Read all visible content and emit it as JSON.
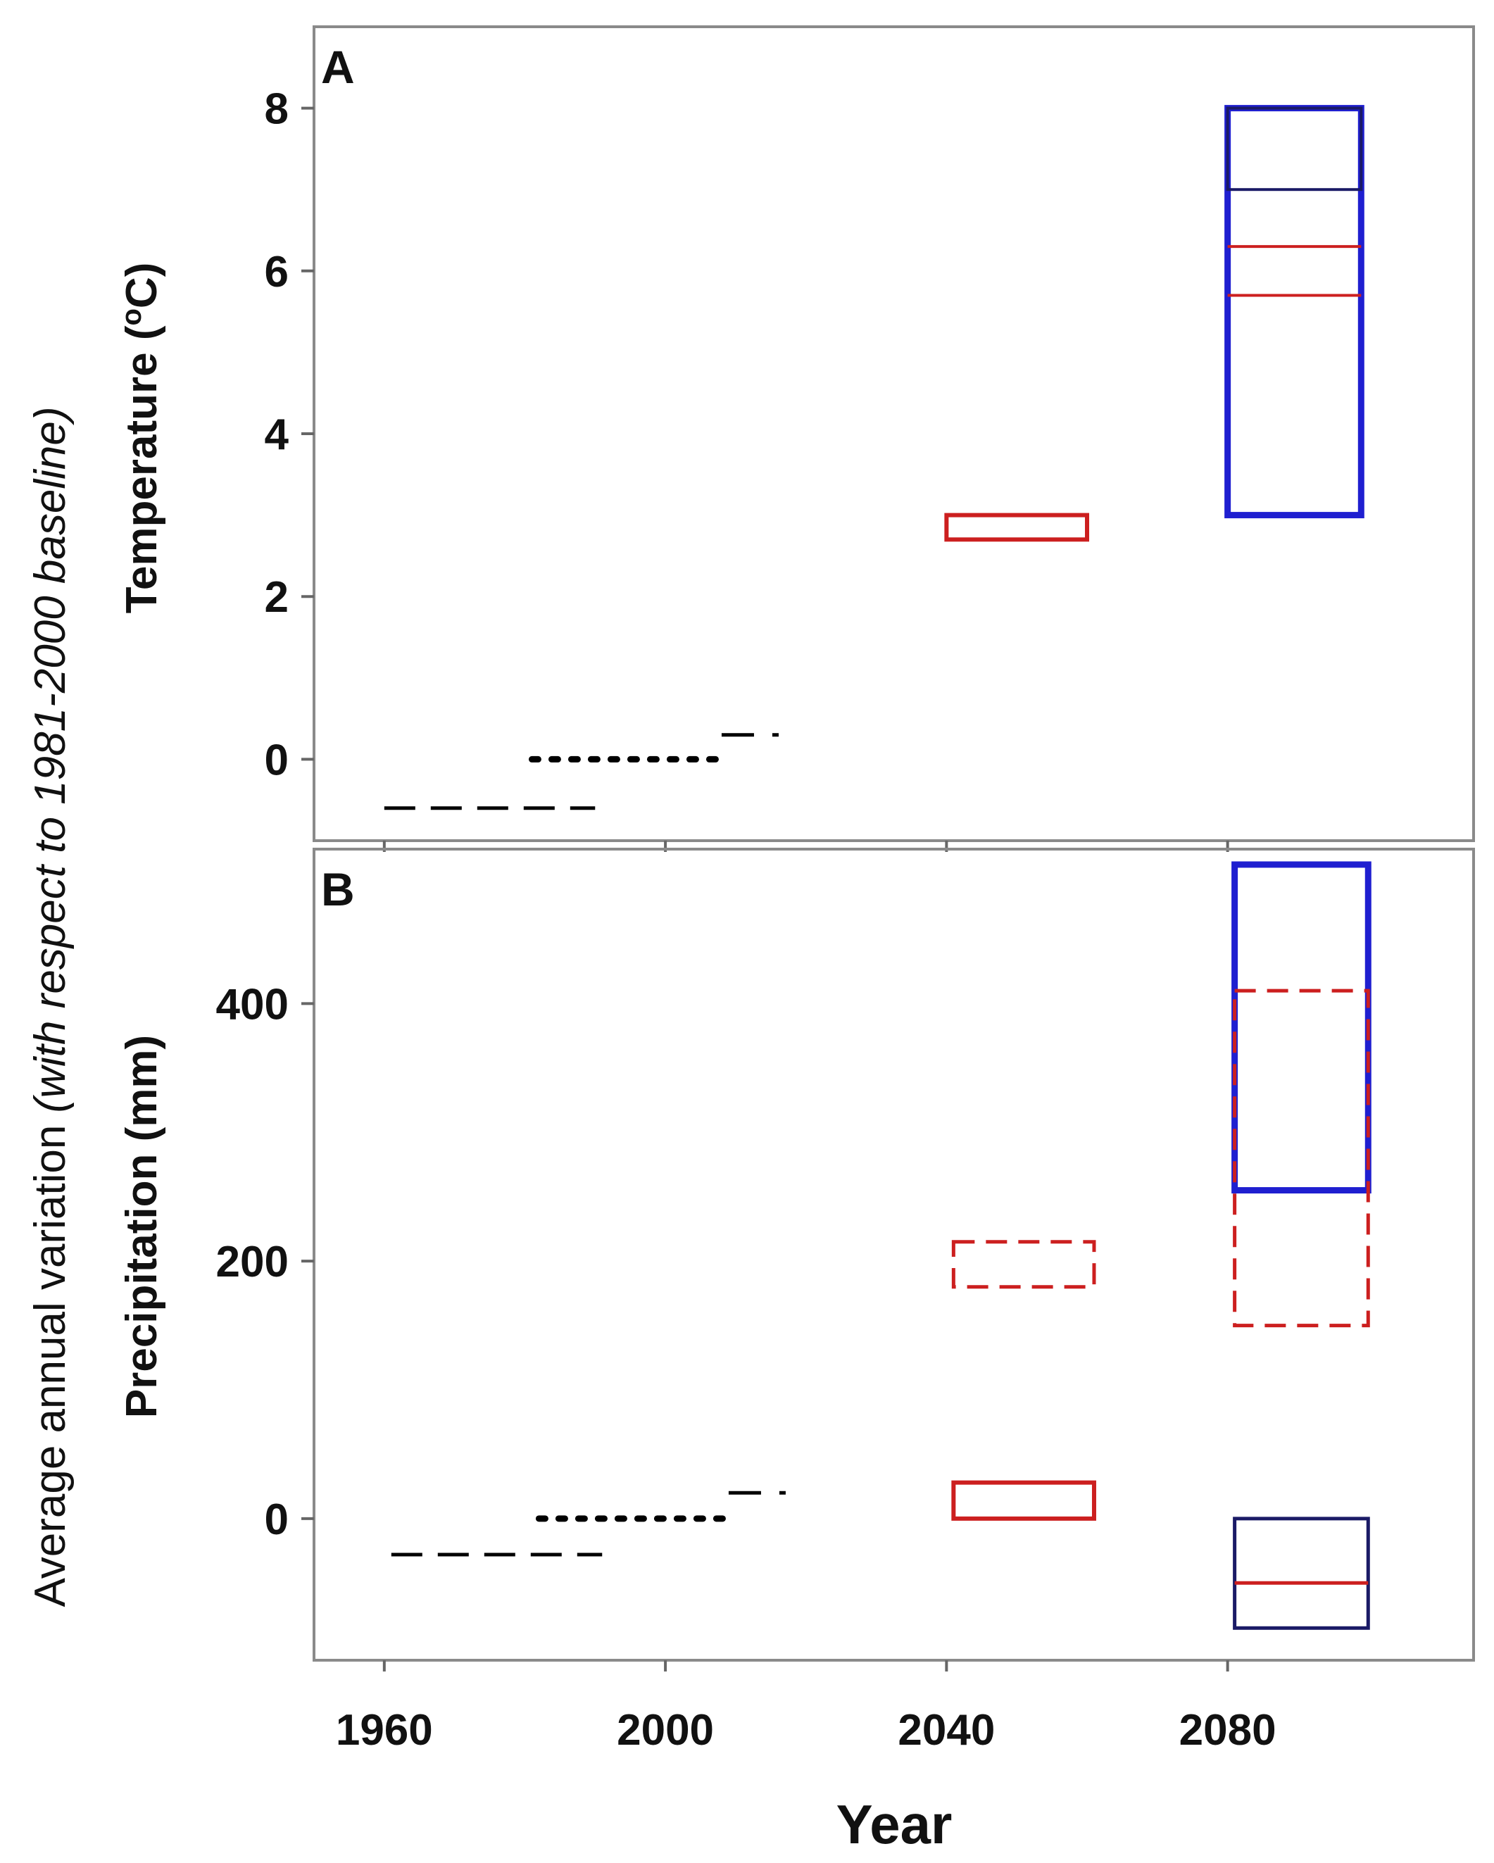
{
  "chart_data": {
    "type": "box-range",
    "xlabel": "Year",
    "xticks": [
      1960,
      2000,
      2040,
      2080
    ],
    "xlim": [
      1950,
      2115
    ],
    "ylabel_shared_prefix": "Average annual variation ",
    "ylabel_shared_italic": "(with respect to 1981-2000 baseline)",
    "panels": [
      {
        "label": "A",
        "ylabel_text": "Temperature (",
        "ylabel_sup": "o",
        "ylabel_suffix": "C)",
        "ylim": [
          -1.0,
          9.0
        ],
        "yticks": [
          0,
          2,
          4,
          6,
          8
        ],
        "segments": [
          {
            "x0": 1960,
            "x1": 1990,
            "y": -0.6,
            "style": "dashed",
            "color": "#000000"
          },
          {
            "x0": 1981,
            "x1": 2008,
            "y": 0.0,
            "style": "dotted",
            "color": "#000000"
          },
          {
            "x0": 2008,
            "x1": 2017,
            "y": 0.3,
            "style": "dashdot",
            "color": "#000000"
          }
        ],
        "boxes": [
          {
            "x0": 2040,
            "x1": 2060,
            "ylow": 2.7,
            "yhigh": 3.0,
            "color": "#cc1f1f",
            "style": "solid",
            "width": 6
          },
          {
            "x0": 2080,
            "x1": 2099,
            "ylow": 3.0,
            "yhigh": 8.0,
            "color": "#1f1fd0",
            "style": "solid",
            "width": 9
          },
          {
            "x0": 2080,
            "x1": 2099,
            "ylow": 7.0,
            "yhigh": 8.0,
            "color": "#1a1a66",
            "style": "solid",
            "width": 4
          }
        ],
        "hlines": [
          {
            "x0": 2080,
            "x1": 2099,
            "y": 6.3,
            "color": "#cc1f1f",
            "width": 4
          },
          {
            "x0": 2080,
            "x1": 2099,
            "y": 5.7,
            "color": "#cc1f1f",
            "width": 4
          }
        ]
      },
      {
        "label": "B",
        "ylabel_text": "Precipitation (mm)",
        "ylim": [
          -110,
          520
        ],
        "yticks": [
          0,
          200,
          400
        ],
        "segments": [
          {
            "x0": 1961,
            "x1": 1991,
            "y": -28,
            "style": "dashed",
            "color": "#000000"
          },
          {
            "x0": 1982,
            "x1": 2010,
            "y": 0,
            "style": "dotted",
            "color": "#000000"
          },
          {
            "x0": 2009,
            "x1": 2018,
            "y": 20,
            "style": "dashdot",
            "color": "#000000"
          }
        ],
        "boxes": [
          {
            "x0": 2041,
            "x1": 2061,
            "ylow": 180,
            "yhigh": 215,
            "color": "#cc1f1f",
            "style": "dashed",
            "width": 5
          },
          {
            "x0": 2041,
            "x1": 2061,
            "ylow": 0,
            "yhigh": 28,
            "color": "#cc1f1f",
            "style": "solid",
            "width": 6
          },
          {
            "x0": 2081,
            "x1": 2100,
            "ylow": 255,
            "yhigh": 508,
            "color": "#1f1fd0",
            "style": "solid",
            "width": 9
          },
          {
            "x0": 2081,
            "x1": 2100,
            "ylow": 150,
            "yhigh": 410,
            "color": "#cc1f1f",
            "style": "dashed",
            "width": 5
          },
          {
            "x0": 2081,
            "x1": 2100,
            "ylow": -85,
            "yhigh": 0,
            "color": "#1a1a66",
            "style": "solid",
            "width": 5
          }
        ],
        "hlines": [
          {
            "x0": 2081,
            "x1": 2100,
            "y": -50,
            "color": "#cc1f1f",
            "width": 5
          }
        ]
      }
    ]
  }
}
